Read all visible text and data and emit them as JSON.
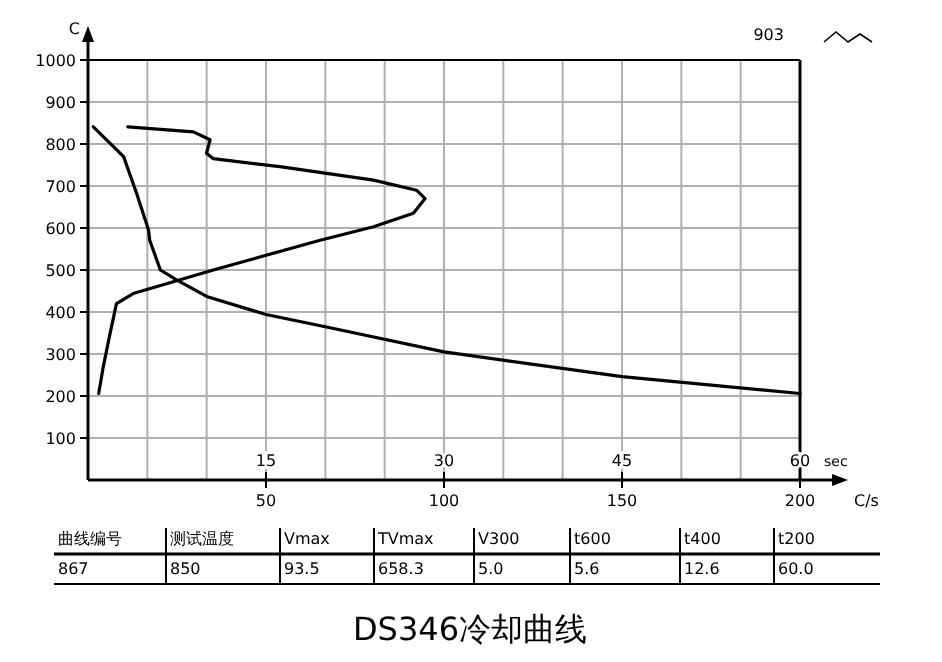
{
  "chart_data": {
    "type": "line",
    "title": "DS346冷却曲线",
    "ylabel": "C",
    "xlabel": "C/s",
    "x2label": "sec",
    "xlim": [
      0,
      200
    ],
    "xticks": [
      50,
      100,
      150,
      200
    ],
    "x2lim": [
      0,
      60
    ],
    "x2ticks": [
      {
        "value": 5,
        "label": null
      },
      {
        "value": 10,
        "label": null
      },
      15,
      {
        "value": 20,
        "label": null
      },
      {
        "value": 25,
        "label": null
      },
      30,
      {
        "value": 35,
        "label": null
      },
      {
        "value": 40,
        "label": null
      },
      45,
      {
        "value": 50,
        "label": null
      },
      {
        "value": 55,
        "label": null
      },
      60
    ],
    "ylim": [
      0,
      1000
    ],
    "yticks": [
      100,
      200,
      300,
      400,
      500,
      600,
      700,
      800,
      900,
      1000
    ],
    "grid": true,
    "series": [
      {
        "color": "#000000",
        "x": [
          11.2,
          29.6,
          34.3,
          33.3,
          35.2,
          53.9,
          80.2,
          92.3,
          94.7,
          91.4,
          80.2,
          65.2,
          35.2,
          12.7,
          8.0,
          6.2,
          4.3,
          3.0
        ],
        "values": [
          841,
          829,
          810,
          778,
          765,
          746,
          714,
          690,
          670,
          635,
          603,
          571,
          500,
          444,
          420,
          349,
          270,
          206
        ]
      },
      {
        "color": "#000000",
        "axis": "x2",
        "x": [
          0.45,
          3.0,
          4.1,
          5.1,
          5.2,
          6.1,
          7.5,
          10,
          15,
          20,
          30,
          45,
          60
        ],
        "values": [
          841,
          770,
          682,
          595,
          571,
          500,
          476,
          437,
          394,
          365,
          305,
          246,
          206
        ]
      }
    ],
    "annotations": [
      "903",
      "曲线编号",
      "测试温度",
      "Vmax",
      "TVmax",
      "V300",
      "t600",
      "t400",
      "t200",
      "867",
      "850",
      "93.5",
      "658.3",
      "5.0",
      "5.6",
      "12.6",
      "60.0"
    ]
  }
}
